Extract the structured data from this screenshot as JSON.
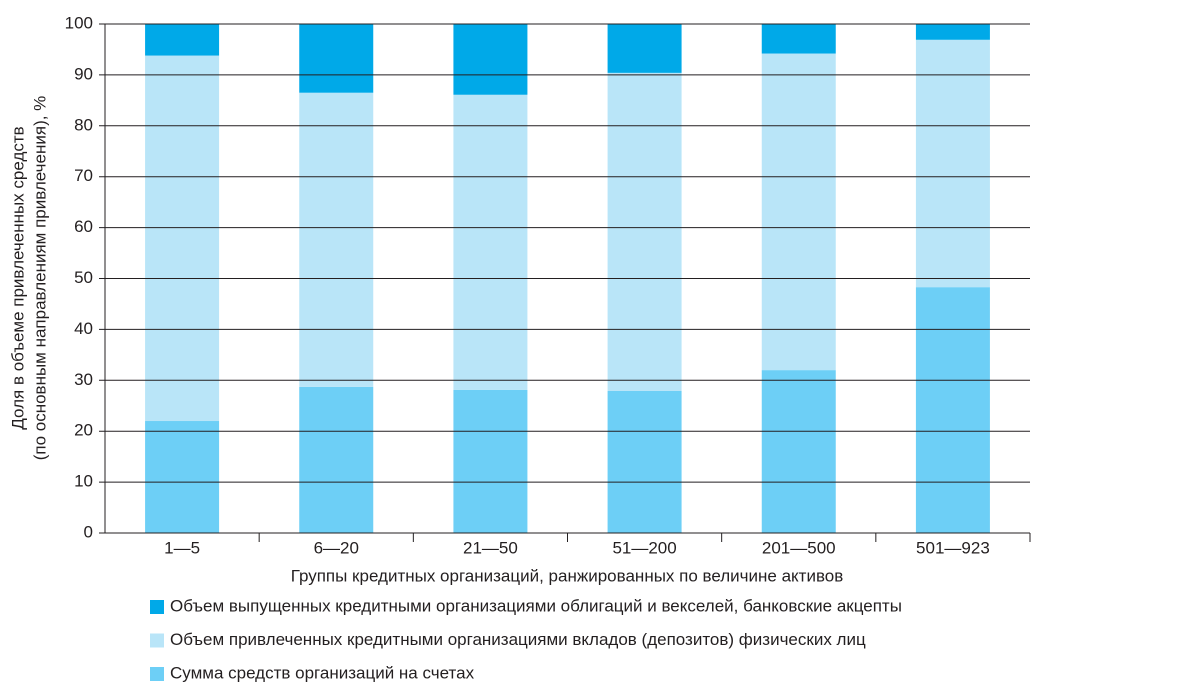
{
  "chart_data": {
    "type": "bar",
    "stacked": true,
    "y_label": [
      "Доля в  объеме привлеченных средств",
      "(по основным направлениям привлечения), %"
    ],
    "x_label": "Группы кредитных организаций, ранжированных по величине активов",
    "categories": [
      "1—5",
      "6—20",
      "21—50",
      "51—200",
      "201—500",
      "501—923"
    ],
    "series": [
      {
        "name": "Сумма средств организаций на счетах",
        "color": "#6dcff6",
        "values": [
          22,
          28.7,
          28.1,
          27.9,
          32,
          48.3
        ]
      },
      {
        "name": "Объем привлеченных кредитными организациями вкладов (депозитов) физических лиц",
        "color": "#b9e5f8",
        "values": [
          71.8,
          57.8,
          58,
          62.5,
          62.2,
          48.6
        ]
      },
      {
        "name": "Объем выпущенных кредитными организациями облигаций и векселей, банковские акцепты",
        "color": "#00a9e8",
        "values": [
          6.2,
          13.5,
          13.9,
          9.6,
          5.8,
          3.1
        ]
      }
    ],
    "ylim": [
      0,
      100
    ],
    "yticks": [
      0,
      10,
      20,
      30,
      40,
      50,
      60,
      70,
      80,
      90,
      100
    ],
    "grid": true
  }
}
